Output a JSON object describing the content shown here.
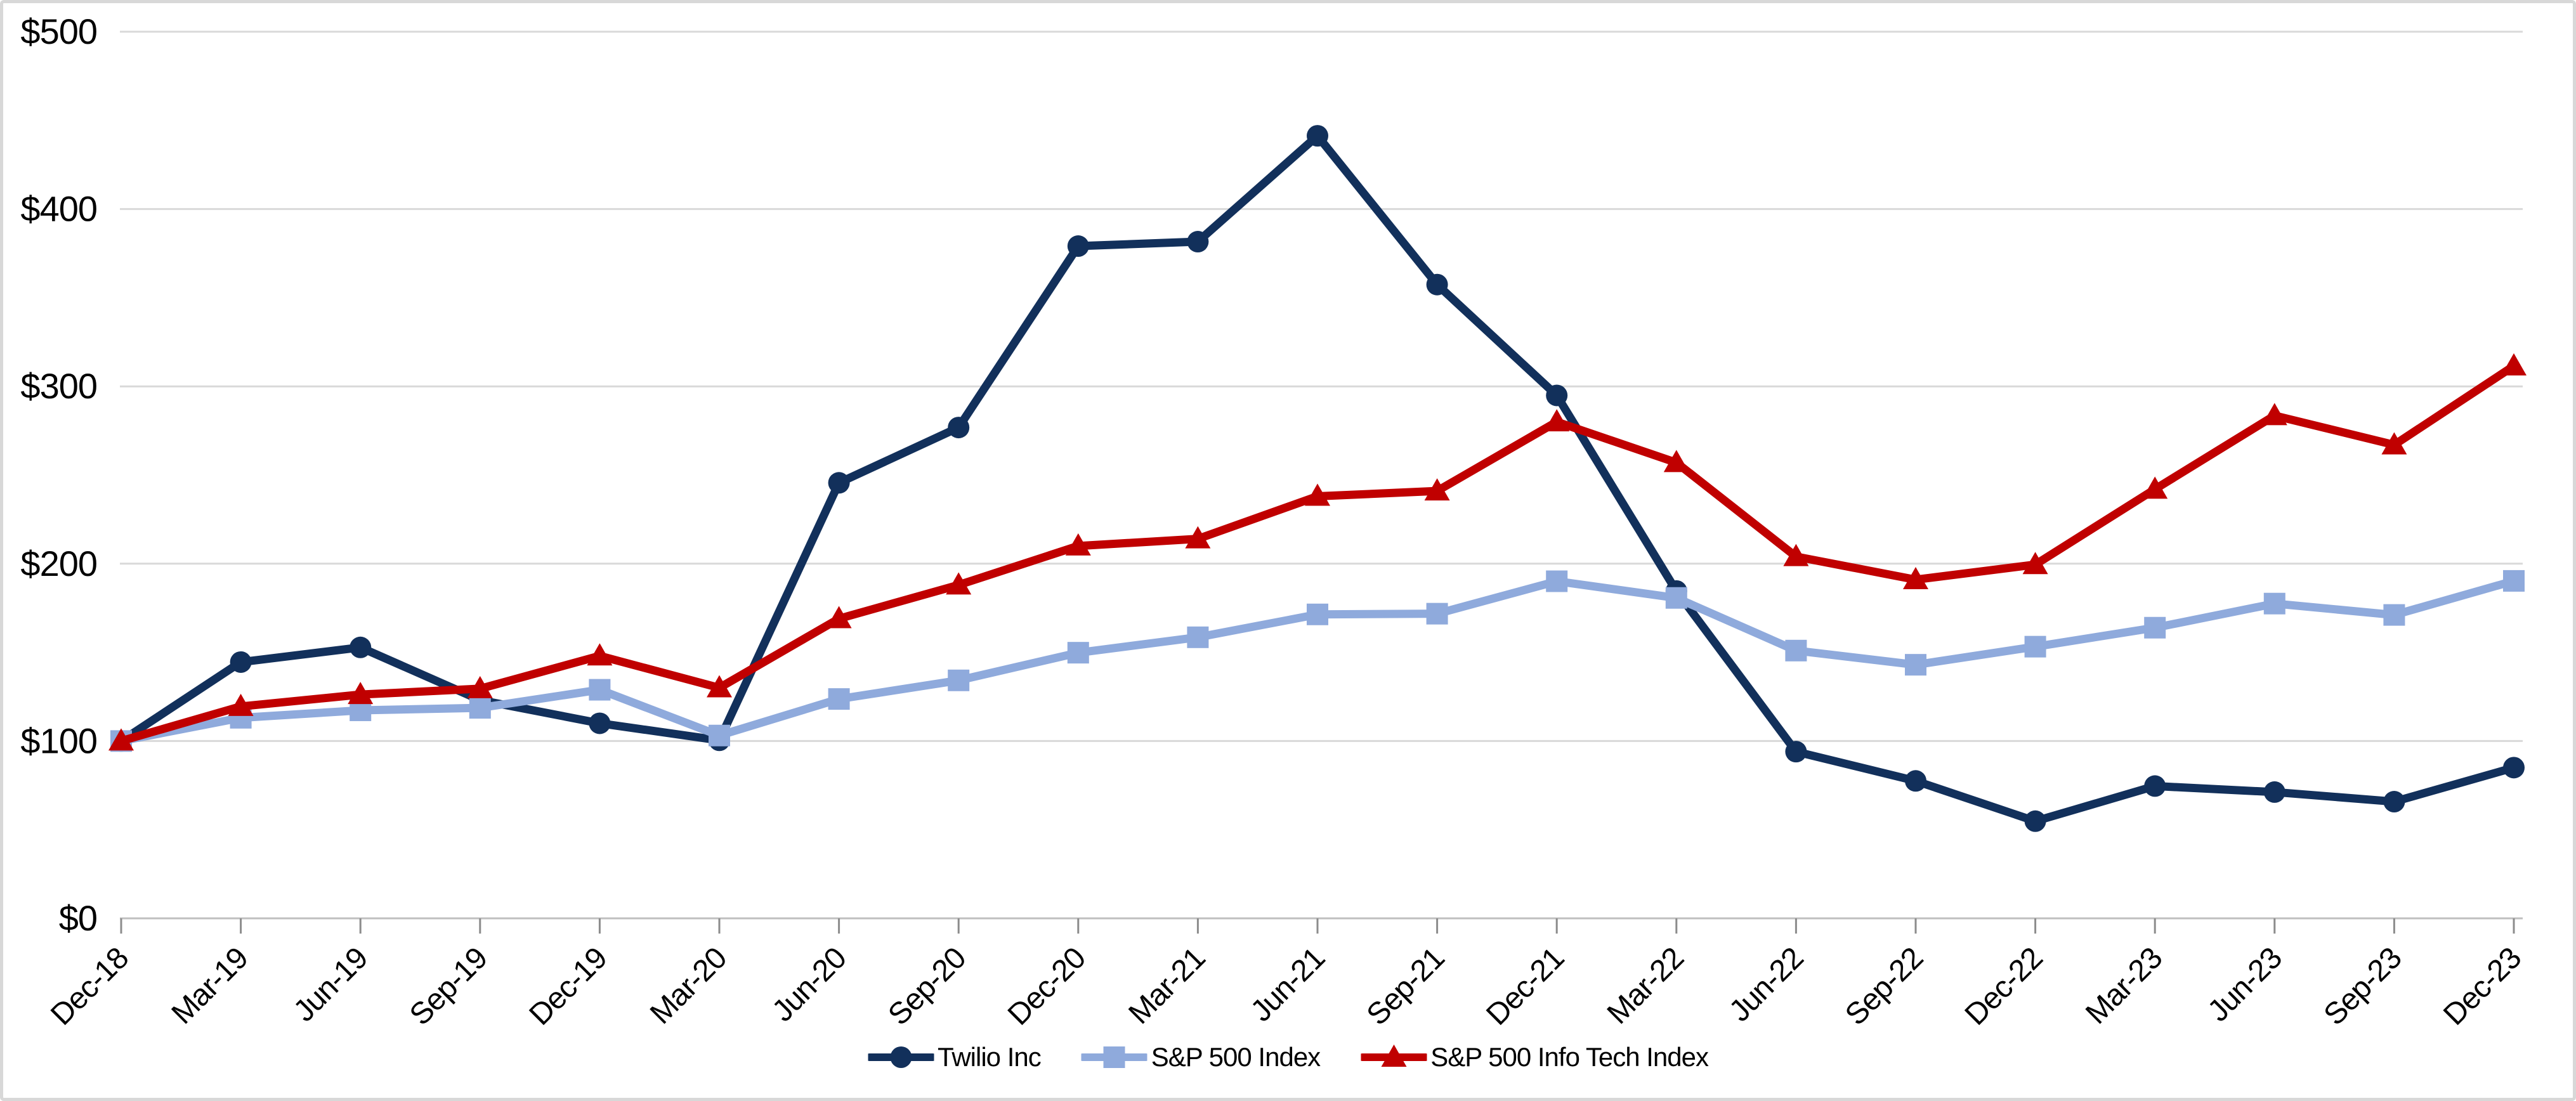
{
  "chart_data": {
    "type": "line",
    "title": "",
    "xlabel": "",
    "ylabel": "",
    "categories": [
      "Dec-18",
      "Mar-19",
      "Jun-19",
      "Sep-19",
      "Dec-19",
      "Mar-20",
      "Jun-20",
      "Sep-20",
      "Dec-20",
      "Mar-21",
      "Jun-21",
      "Sep-21",
      "Dec-21",
      "Mar-22",
      "Jun-22",
      "Sep-22",
      "Dec-22",
      "Mar-23",
      "Jun-23",
      "Sep-23",
      "Dec-23"
    ],
    "series": [
      {
        "name": "Twilio Inc",
        "marker": "circle",
        "color": "#12305B",
        "values": [
          100,
          144.5,
          152.8,
          123.1,
          110.0,
          100.4,
          245.6,
          276.8,
          379.1,
          381.6,
          441.3,
          357.4,
          294.9,
          184.6,
          94.0,
          77.5,
          54.8,
          74.6,
          71.2,
          65.8,
          85.0
        ]
      },
      {
        "name": "S&P 500 Index",
        "marker": "square",
        "color": "#8FAADC",
        "values": [
          100,
          113.1,
          117.3,
          118.7,
          128.9,
          103.1,
          123.7,
          134.2,
          149.8,
          158.5,
          171.4,
          171.8,
          190.1,
          180.7,
          151.0,
          143.0,
          153.2,
          163.9,
          177.5,
          171.1,
          190.3
        ]
      },
      {
        "name": "S&P 500 Info Tech Index",
        "marker": "triangle",
        "color": "#C00000",
        "values": [
          100,
          119.5,
          126.2,
          129.5,
          148.0,
          130.0,
          169.0,
          188.0,
          210.0,
          214.0,
          238.0,
          241.0,
          280.0,
          257.0,
          204.0,
          191.0,
          199.5,
          242.0,
          283.5,
          267.0,
          311.5
        ]
      }
    ],
    "ylim": [
      0,
      500
    ],
    "y_ticks": [
      0,
      100,
      200,
      300,
      400,
      500
    ],
    "y_tick_labels": [
      "$0",
      "$100",
      "$200",
      "$300",
      "$400",
      "$500"
    ],
    "grid": "horizontal-only",
    "legend_position": "bottom-center",
    "x_label_rotation_deg": 45
  },
  "style": {
    "background": "#FFFFFF",
    "frame_border": "#D8D8D8",
    "gridline_color": "#D9D9D9",
    "axis_line_color": "#BFBFBF",
    "tick_mark_color": "#8C8C8C",
    "text_color": "#000000"
  }
}
